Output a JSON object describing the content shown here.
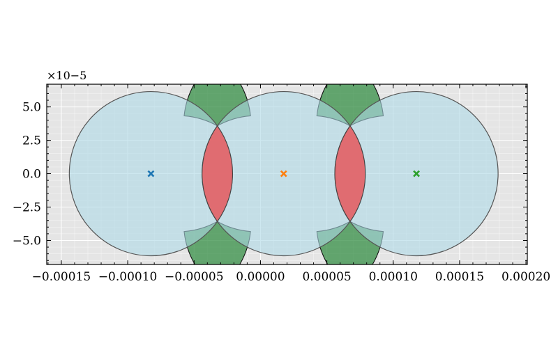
{
  "chart_data": {
    "type": "scatter",
    "title": "",
    "xlabel": "",
    "ylabel": "",
    "xlim": [
      -0.000161,
      0.000201
    ],
    "ylim": [
      -6.8e-05,
      6.7e-05
    ],
    "y_scale_label": "×10−5",
    "grid": true,
    "xticks": [
      -0.00015,
      -0.0001,
      -5e-05,
      0,
      5e-05,
      0.0001,
      0.00015,
      0.0002
    ],
    "xtick_labels": [
      "−0.00015",
      "−0.00010",
      "−0.00005",
      "0.00000",
      "0.00005",
      "0.00010",
      "0.00015",
      "0.00020"
    ],
    "yticks": [
      -5e-05,
      -2.5e-05,
      0,
      2.5e-05,
      5e-05
    ],
    "ytick_labels": [
      "−5.0",
      "−2.5",
      "0.0",
      "2.5",
      "5.0"
    ],
    "circles": [
      {
        "center": [
          -8.25e-05,
          0
        ],
        "radius": 6.15e-05
      },
      {
        "center": [
          1.75e-05,
          0
        ],
        "radius": 6.15e-05
      },
      {
        "center": [
          0.0001175,
          0
        ],
        "radius": 6.15e-05
      }
    ],
    "series": [
      {
        "x": [
          -8.25e-05
        ],
        "y": [
          0
        ],
        "marker": "x",
        "color": "#1f77b4"
      },
      {
        "x": [
          1.75e-05
        ],
        "y": [
          0
        ],
        "marker": "x",
        "color": "#ff7f0e"
      },
      {
        "x": [
          0.0001175
        ],
        "y": [
          0
        ],
        "marker": "x",
        "color": "#2ca02c"
      }
    ],
    "colors": {
      "background": "#e5e5e5",
      "grid": "#ffffff",
      "circle_fill": "#add8e6",
      "overlap_fill": "#e8585c",
      "gap_fill": "#2e8b3e"
    }
  }
}
